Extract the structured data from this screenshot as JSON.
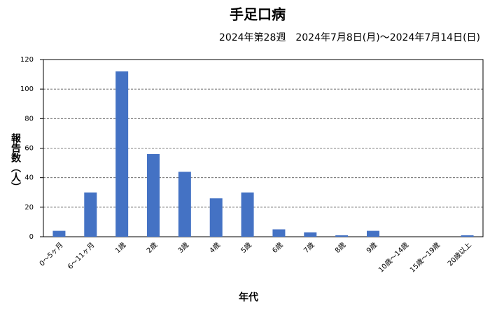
{
  "chart_data": {
    "type": "bar",
    "title": "手足口病",
    "subtitle": "2024年第28週　2024年7月8日(月)〜2024年7月14日(日)",
    "x_label": "年代",
    "y_label": "報告数（人）",
    "categories": [
      "0〜5ヶ月",
      "6〜11ヶ月",
      "1歳",
      "2歳",
      "3歳",
      "4歳",
      "5歳",
      "6歳",
      "7歳",
      "8歳",
      "9歳",
      "10歳〜14歳",
      "15歳〜19歳",
      "20歳以上"
    ],
    "values": [
      4,
      30,
      112,
      56,
      44,
      26,
      30,
      5,
      3,
      1,
      4,
      0,
      0,
      1
    ],
    "color": "#4472c4",
    "ylim": [
      0,
      120
    ],
    "yticks": [
      0,
      20,
      40,
      60,
      80,
      100,
      120
    ],
    "grid": true
  }
}
